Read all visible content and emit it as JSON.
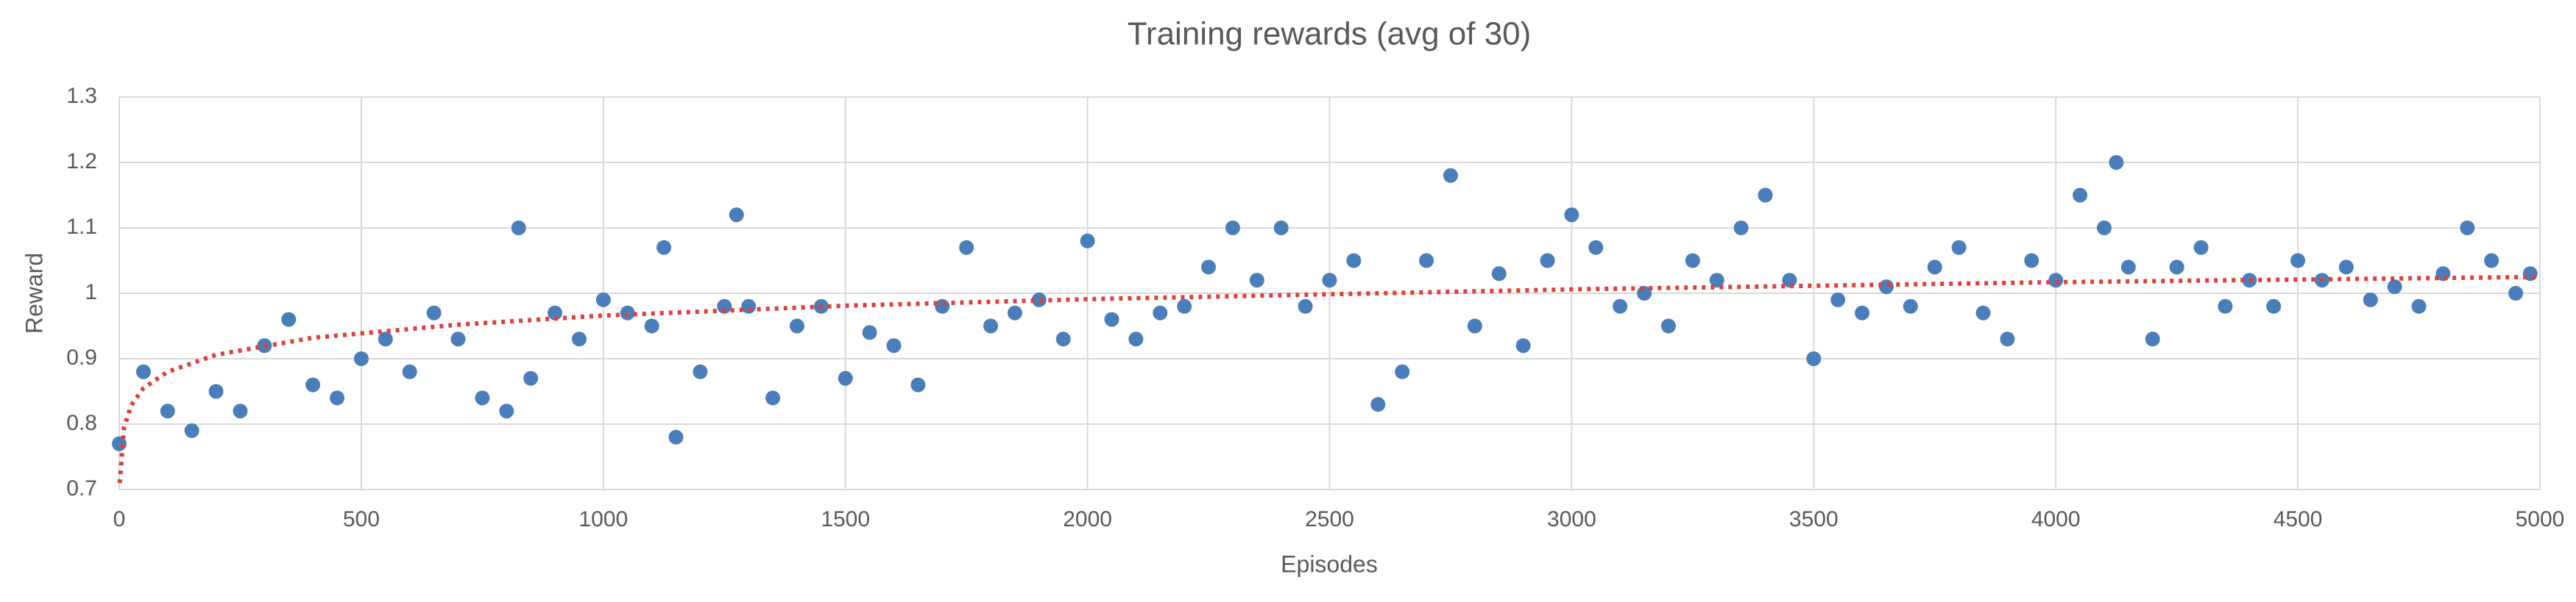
{
  "chart_data": {
    "type": "scatter",
    "title": "Training rewards (avg of 30)",
    "x_label": "Episodes",
    "y_label": "Reward",
    "xlim": [
      0,
      5000
    ],
    "xticks": [
      0,
      500,
      1000,
      1500,
      2000,
      2500,
      3000,
      3500,
      4000,
      4500,
      5000
    ],
    "ylim": [
      0.7,
      1.3
    ],
    "yticks": [
      0.7,
      0.8,
      0.9,
      1,
      1.1,
      1.2,
      1.3
    ],
    "grid": true,
    "series": [
      {
        "color": "#4a7ebb",
        "marker": "circle",
        "x": [
          0,
          50,
          100,
          150,
          200,
          250,
          300,
          350,
          400,
          450,
          500,
          550,
          600,
          650,
          700,
          750,
          800,
          825,
          850,
          900,
          950,
          1000,
          1050,
          1100,
          1125,
          1150,
          1200,
          1250,
          1275,
          1300,
          1350,
          1400,
          1450,
          1500,
          1550,
          1600,
          1650,
          1700,
          1750,
          1800,
          1850,
          1900,
          1950,
          2000,
          2050,
          2100,
          2150,
          2200,
          2250,
          2300,
          2350,
          2400,
          2450,
          2500,
          2550,
          2600,
          2650,
          2700,
          2750,
          2800,
          2850,
          2900,
          2950,
          3000,
          3050,
          3100,
          3150,
          3200,
          3250,
          3300,
          3350,
          3400,
          3450,
          3500,
          3550,
          3600,
          3650,
          3700,
          3750,
          3800,
          3850,
          3900,
          3950,
          4000,
          4050,
          4100,
          4125,
          4150,
          4200,
          4250,
          4300,
          4350,
          4400,
          4450,
          4500,
          4550,
          4600,
          4650,
          4700,
          4750,
          4800,
          4850,
          4900,
          4950,
          4980
        ],
        "values": [
          0.77,
          0.88,
          0.82,
          0.79,
          0.85,
          0.82,
          0.92,
          0.96,
          0.86,
          0.84,
          0.9,
          0.93,
          0.88,
          0.97,
          0.93,
          0.84,
          0.82,
          1.1,
          0.87,
          0.97,
          0.93,
          0.99,
          0.97,
          0.95,
          1.07,
          0.78,
          0.88,
          0.98,
          1.12,
          0.98,
          0.84,
          0.95,
          0.98,
          0.87,
          0.94,
          0.92,
          0.86,
          0.98,
          1.07,
          0.95,
          0.97,
          0.99,
          0.93,
          1.08,
          0.96,
          0.93,
          0.97,
          0.98,
          1.04,
          1.1,
          1.02,
          1.1,
          0.98,
          1.02,
          1.05,
          0.83,
          0.88,
          1.05,
          1.18,
          0.95,
          1.03,
          0.92,
          1.05,
          1.12,
          1.07,
          0.98,
          1,
          0.95,
          1.05,
          1.02,
          1.1,
          1.15,
          1.02,
          0.9,
          0.99,
          0.97,
          1.01,
          0.98,
          1.04,
          1.07,
          0.97,
          0.93,
          1.05,
          1.02,
          1.15,
          1.1,
          1.2,
          1.04,
          0.93,
          1.04,
          1.07,
          0.98,
          1.02,
          0.98,
          1.05,
          1.02,
          1.04,
          0.99,
          1.01,
          0.98,
          1.03,
          1.1,
          1.05,
          1,
          1.03
        ]
      },
      {
        "color": "#e0403a",
        "line_style": "dotted",
        "x": [
          1,
          10,
          25,
          50,
          100,
          200,
          400,
          700,
          1000,
          1500,
          2000,
          3000,
          4000,
          5000
        ],
        "values": [
          0.71,
          0.795,
          0.829,
          0.855,
          0.88,
          0.906,
          0.932,
          0.952,
          0.966,
          0.981,
          0.991,
          1.006,
          1.017,
          1.025
        ]
      }
    ]
  }
}
